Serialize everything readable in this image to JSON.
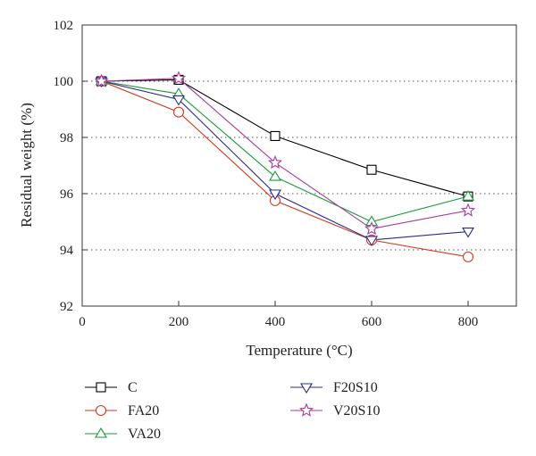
{
  "chart_data": {
    "type": "line",
    "xlabel": "Temperature (°C)",
    "ylabel": "Residual weight (%)",
    "xlim": [
      0,
      900
    ],
    "ylim": [
      92,
      102
    ],
    "xticks": [
      0,
      200,
      400,
      600,
      800
    ],
    "yticks": [
      92,
      94,
      96,
      98,
      100,
      102
    ],
    "grid": "horizontal dotted",
    "legend_position": "below",
    "x": [
      40,
      200,
      400,
      600,
      800
    ],
    "series": [
      {
        "name": "C",
        "marker": "square",
        "color": "#000000",
        "values": [
          100.0,
          100.05,
          98.05,
          96.85,
          95.9
        ]
      },
      {
        "name": "FA20",
        "marker": "circle",
        "color": "#d5361a",
        "values": [
          100.0,
          98.9,
          95.75,
          94.35,
          93.75
        ]
      },
      {
        "name": "VA20",
        "marker": "triangle-up",
        "color": "#1e9a3c",
        "values": [
          100.0,
          99.55,
          96.6,
          95.0,
          95.9
        ]
      },
      {
        "name": "F20S10",
        "marker": "triangle-down",
        "color": "#2a2a8c",
        "values": [
          100.0,
          99.35,
          96.0,
          94.35,
          94.65
        ]
      },
      {
        "name": "V20S10",
        "marker": "star",
        "color": "#a63a9e",
        "values": [
          100.0,
          100.1,
          97.1,
          94.75,
          95.4
        ]
      }
    ]
  }
}
